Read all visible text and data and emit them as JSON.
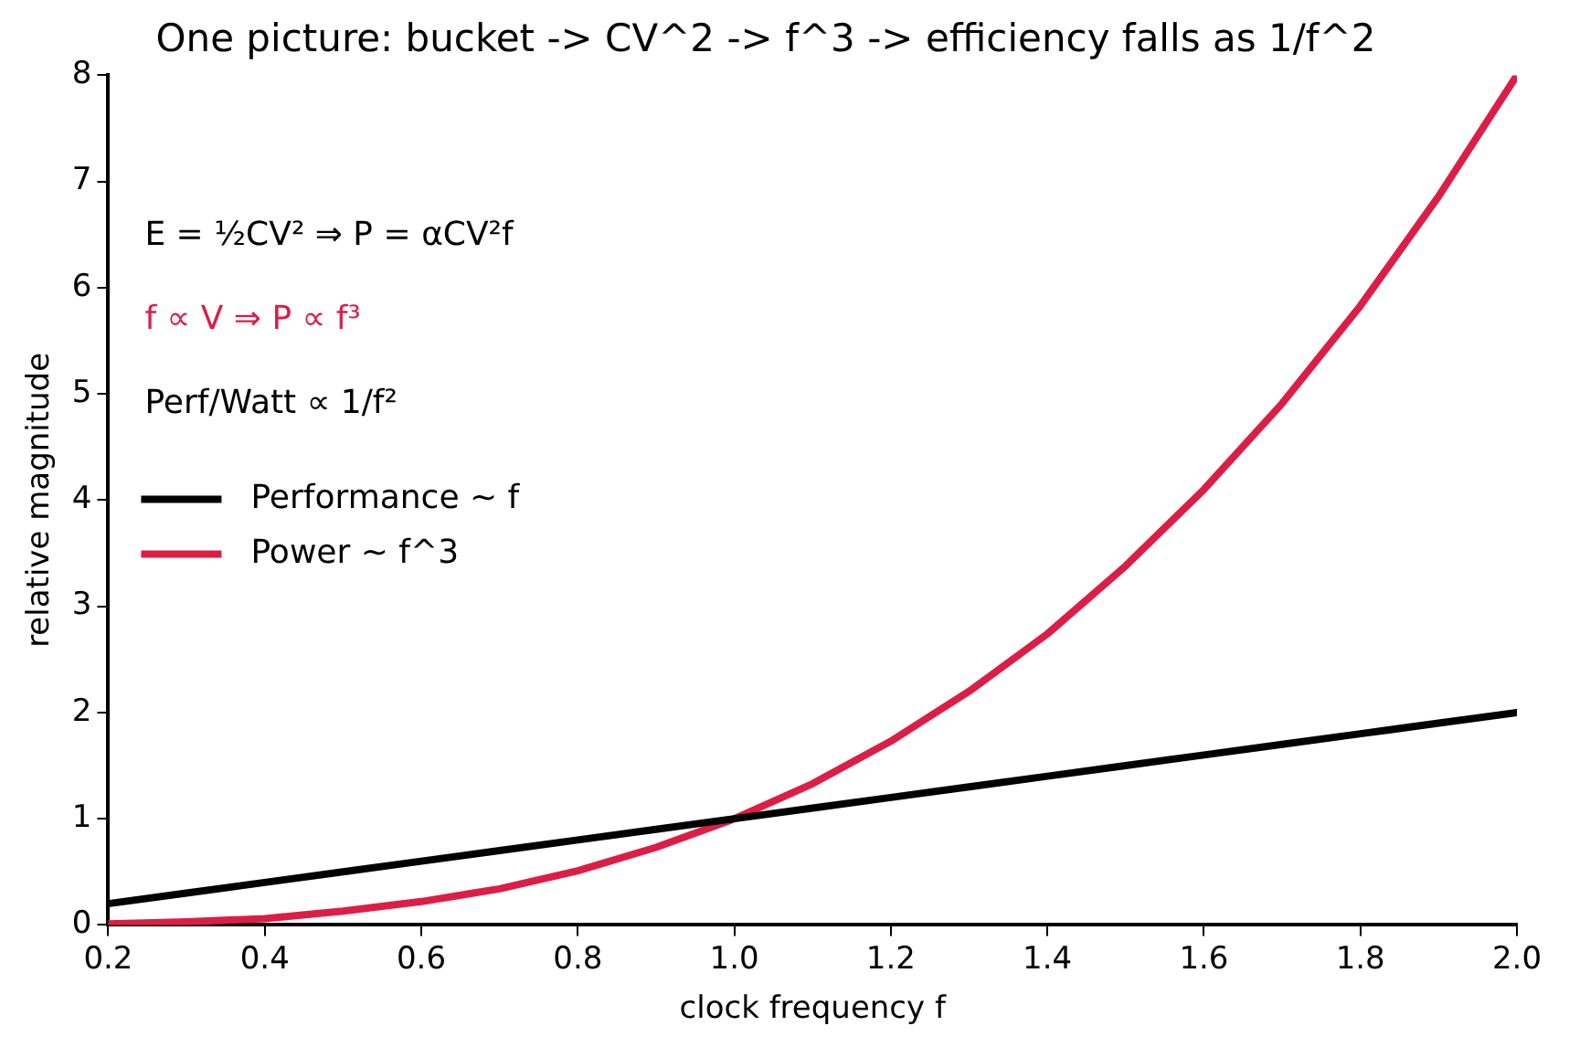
{
  "chart_data": {
    "type": "line",
    "title": "One picture: bucket -> CV^2 -> f^3 -> efficiency falls as 1/f^2",
    "xlabel": "clock frequency f",
    "ylabel": "relative magnitude",
    "x": [
      0.2,
      0.3,
      0.4,
      0.5,
      0.6,
      0.7,
      0.8,
      0.9,
      1.0,
      1.1,
      1.2,
      1.3,
      1.4,
      1.5,
      1.6,
      1.7,
      1.8,
      1.9,
      2.0
    ],
    "series": [
      {
        "name": "Performance ~ f",
        "color": "#000000",
        "values": [
          0.2,
          0.3,
          0.4,
          0.5,
          0.6,
          0.7,
          0.8,
          0.9,
          1.0,
          1.1,
          1.2,
          1.3,
          1.4,
          1.5,
          1.6,
          1.7,
          1.8,
          1.9,
          2.0
        ]
      },
      {
        "name": "Power ~ f^3",
        "color": "#dc1e46",
        "values": [
          0.01,
          0.03,
          0.06,
          0.13,
          0.22,
          0.34,
          0.51,
          0.73,
          1,
          1.33,
          1.73,
          2.2,
          2.74,
          3.38,
          4.1,
          4.91,
          5.83,
          6.86,
          8
        ]
      }
    ],
    "annotations": [
      "E = ½CV² ⇒ P = αCV²f",
      "f ∝ V ⇒ P ∝ f³",
      "Perf/Watt ∝ 1/f²"
    ],
    "xlim": [
      0.2,
      2.0
    ],
    "xticks": [
      0.2,
      0.4,
      0.6,
      0.8,
      {
        "value": 1,
        "label": "1.0"
      },
      1.2,
      1.4,
      1.6,
      1.8,
      {
        "value": 2,
        "label": "2.0"
      }
    ],
    "ylim": [
      0,
      8
    ],
    "yticks": [
      0,
      1,
      2,
      3,
      4,
      5,
      6,
      7,
      8
    ],
    "grid": false,
    "legend": "left",
    "marker": "none",
    "line_style": "solid"
  }
}
